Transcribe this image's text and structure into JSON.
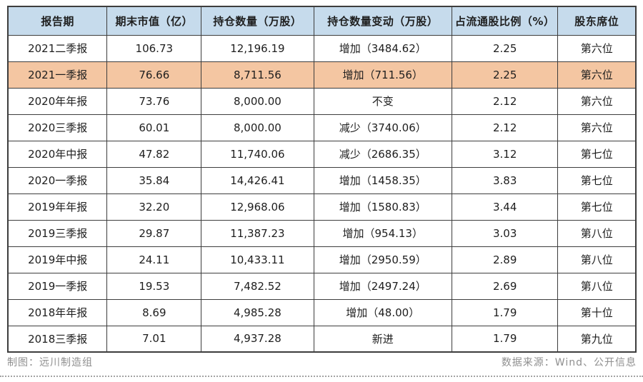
{
  "table": {
    "columns": [
      {
        "key": "period",
        "label": "报告期"
      },
      {
        "key": "market_value",
        "label": "期末市值（亿）"
      },
      {
        "key": "shares",
        "label": "持仓数量（万股）"
      },
      {
        "key": "change",
        "label": "持仓数量变动（万股）"
      },
      {
        "key": "ratio",
        "label": "占流通股比例（%）"
      },
      {
        "key": "rank",
        "label": "股东席位"
      }
    ],
    "rows": [
      {
        "period": "2021二季报",
        "market_value": "106.73",
        "shares": "12,196.19",
        "change": "增加（3484.62）",
        "ratio": "2.25",
        "rank": "第六位",
        "highlighted": false
      },
      {
        "period": "2021一季报",
        "market_value": "76.66",
        "shares": "8,711.56",
        "change": "增加（711.56）",
        "ratio": "2.25",
        "rank": "第六位",
        "highlighted": true
      },
      {
        "period": "2020年年报",
        "market_value": "73.76",
        "shares": "8,000.00",
        "change": "不变",
        "ratio": "2.12",
        "rank": "第六位",
        "highlighted": false
      },
      {
        "period": "2020三季报",
        "market_value": "60.01",
        "shares": "8,000.00",
        "change": "减少（3740.06）",
        "ratio": "2.12",
        "rank": "第六位",
        "highlighted": false
      },
      {
        "period": "2020年中报",
        "market_value": "47.82",
        "shares": "11,740.06",
        "change": "减少（2686.35）",
        "ratio": "3.12",
        "rank": "第七位",
        "highlighted": false
      },
      {
        "period": "2020一季报",
        "market_value": "35.84",
        "shares": "14,426.41",
        "change": "增加（1458.35）",
        "ratio": "3.83",
        "rank": "第七位",
        "highlighted": false
      },
      {
        "period": "2019年年报",
        "market_value": "32.20",
        "shares": "12,968.06",
        "change": "增加（1580.83）",
        "ratio": "3.44",
        "rank": "第七位",
        "highlighted": false
      },
      {
        "period": "2019三季报",
        "market_value": "29.87",
        "shares": "11,387.23",
        "change": "增加（954.13）",
        "ratio": "3.03",
        "rank": "第八位",
        "highlighted": false
      },
      {
        "period": "2019年中报",
        "market_value": "24.11",
        "shares": "10,433.11",
        "change": "增加（2950.59）",
        "ratio": "2.89",
        "rank": "第八位",
        "highlighted": false
      },
      {
        "period": "2019一季报",
        "market_value": "19.53",
        "shares": "7,482.52",
        "change": "增加（2497.24）",
        "ratio": "2.69",
        "rank": "第八位",
        "highlighted": false
      },
      {
        "period": "2018年年报",
        "market_value": "8.69",
        "shares": "4,985.28",
        "change": "增加（48.00）",
        "ratio": "1.79",
        "rank": "第十位",
        "highlighted": false
      },
      {
        "period": "2018三季报",
        "market_value": "7.01",
        "shares": "4,937.28",
        "change": "新进",
        "ratio": "1.79",
        "rank": "第九位",
        "highlighted": false
      }
    ]
  },
  "footer": {
    "credit_left": "制图：远川制造组",
    "credit_right": "数据来源：Wind、公开信息"
  },
  "colors": {
    "header_bg": "#c6dbec",
    "highlight_bg": "#f4c6a2",
    "border": "#3d3d3d",
    "footer_text": "#8f8f8f"
  }
}
